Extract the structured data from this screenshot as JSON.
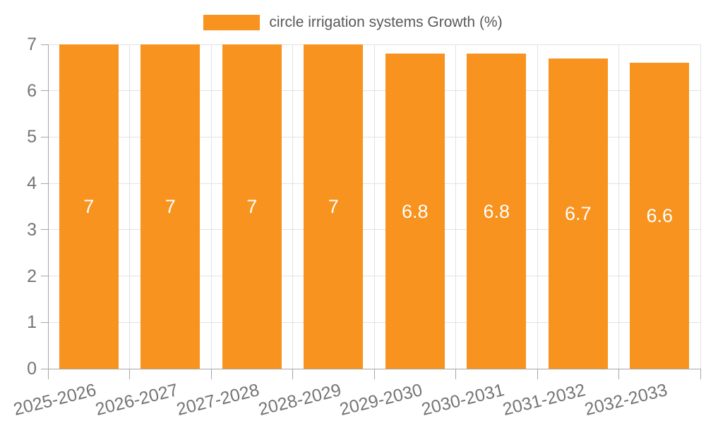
{
  "chart_data": {
    "type": "bar",
    "title": "circle irrigation systems Growth (%)",
    "legend": [
      {
        "label": "circle irrigation systems Growth (%)"
      }
    ],
    "legend_position": "top-center",
    "categories": [
      "2025-2026",
      "2026-2027",
      "2027-2028",
      "2028-2029",
      "2029-2030",
      "2030-2031",
      "2031-2032",
      "2032-2033"
    ],
    "series": [
      {
        "name": "circle irrigation systems Growth (%)",
        "values": [
          7,
          7,
          7,
          7,
          6.8,
          6.8,
          6.7,
          6.6
        ]
      }
    ],
    "bar_value_labels": [
      "7",
      "7",
      "7",
      "7",
      "6.8",
      "6.8",
      "6.7",
      "6.6"
    ],
    "xlabel": "",
    "ylabel": "",
    "ylim": [
      0,
      7
    ],
    "y_ticks": [
      0,
      1,
      2,
      3,
      4,
      5,
      6,
      7
    ],
    "grid": "on",
    "x_label_rotation_deg": -14
  },
  "colors": {
    "bar": "#F7931E",
    "bar_label": "#FFFFFF",
    "grid": "#E2E2E2",
    "axis_line": "#A6A6A6",
    "axis_text": "#757575",
    "legend_text": "#595959",
    "background": "#FFFFFF"
  }
}
